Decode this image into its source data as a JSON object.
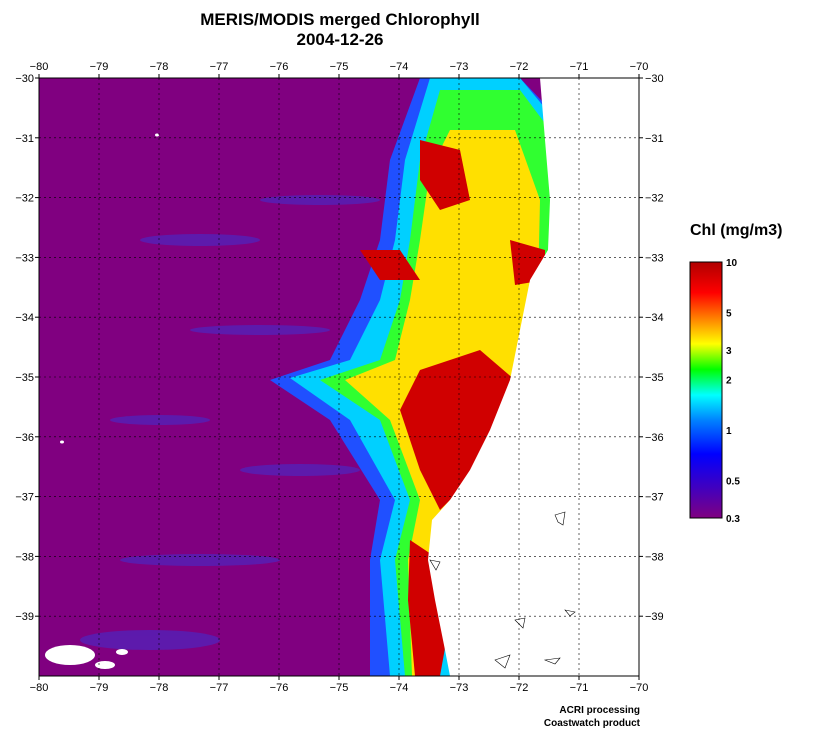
{
  "title": "MERIS/MODIS merged Chlorophyll",
  "date": "2004-12-26",
  "map": {
    "lon_range": [
      -80,
      -70
    ],
    "lat_range": [
      -40,
      -30
    ],
    "lon_ticks": [
      -80,
      -79,
      -78,
      -77,
      -76,
      -75,
      -74,
      -73,
      -72,
      -71,
      -70
    ],
    "lat_ticks": [
      -30,
      -31,
      -32,
      -33,
      -34,
      -35,
      -36,
      -37,
      -38,
      -39
    ],
    "ocean_color": "#800080",
    "land_color": "#ffffff"
  },
  "legend": {
    "title": "Chl (mg/m3)",
    "labels": [
      "10",
      "5",
      "3",
      "2",
      "1",
      "0.5",
      "0.3"
    ],
    "values": [
      10,
      5,
      3,
      2,
      1,
      0.5,
      0.3
    ],
    "colors": [
      "#b00000",
      "#ff0000",
      "#ff8000",
      "#ffff00",
      "#00ff00",
      "#00ffff",
      "#0080ff",
      "#0000ff",
      "#4000c0",
      "#800080"
    ]
  },
  "credits": {
    "line1": "ACRI processing",
    "line2": "Coastwatch product"
  }
}
